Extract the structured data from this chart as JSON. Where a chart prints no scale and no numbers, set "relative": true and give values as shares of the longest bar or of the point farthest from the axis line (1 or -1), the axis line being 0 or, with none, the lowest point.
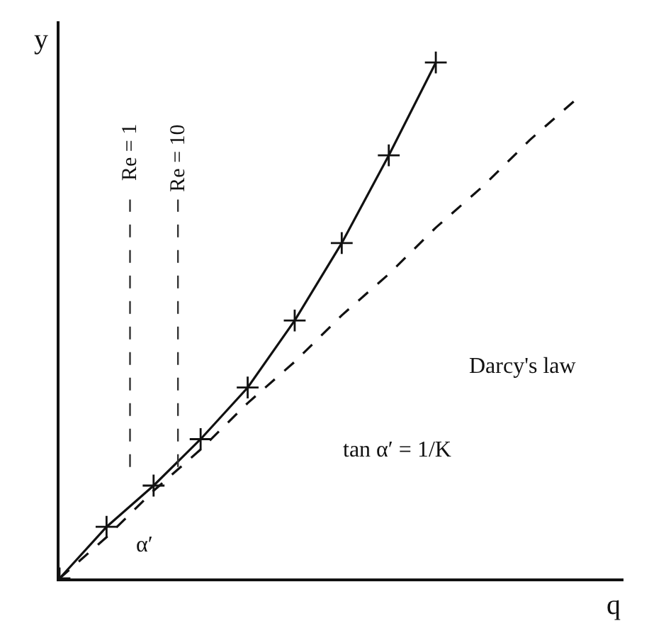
{
  "chart_data": {
    "type": "line",
    "relative": true,
    "xlabel": "q",
    "ylabel": "y",
    "categories": [
      null,
      null,
      null,
      null,
      null,
      null,
      null,
      null,
      null,
      null,
      null,
      null
    ],
    "series": [
      {
        "color": "#111111",
        "marker": "cross",
        "line_style": "solid",
        "values": [
          0,
          0.1,
          0.18,
          0.27,
          0.37,
          0.5,
          0.65,
          0.82,
          1.0,
          null,
          null,
          null
        ]
      },
      {
        "color": "#111111",
        "marker": "none",
        "line_style": "dashed",
        "values": [
          0,
          0.08,
          0.17,
          0.25,
          0.34,
          0.42,
          0.51,
          0.59,
          0.68,
          0.76,
          0.85,
          0.93
        ]
      }
    ],
    "annotations": [
      "Darcy's law",
      "tan α′ = 1/K",
      "α′",
      "Re = 1",
      "Re = 10"
    ]
  }
}
